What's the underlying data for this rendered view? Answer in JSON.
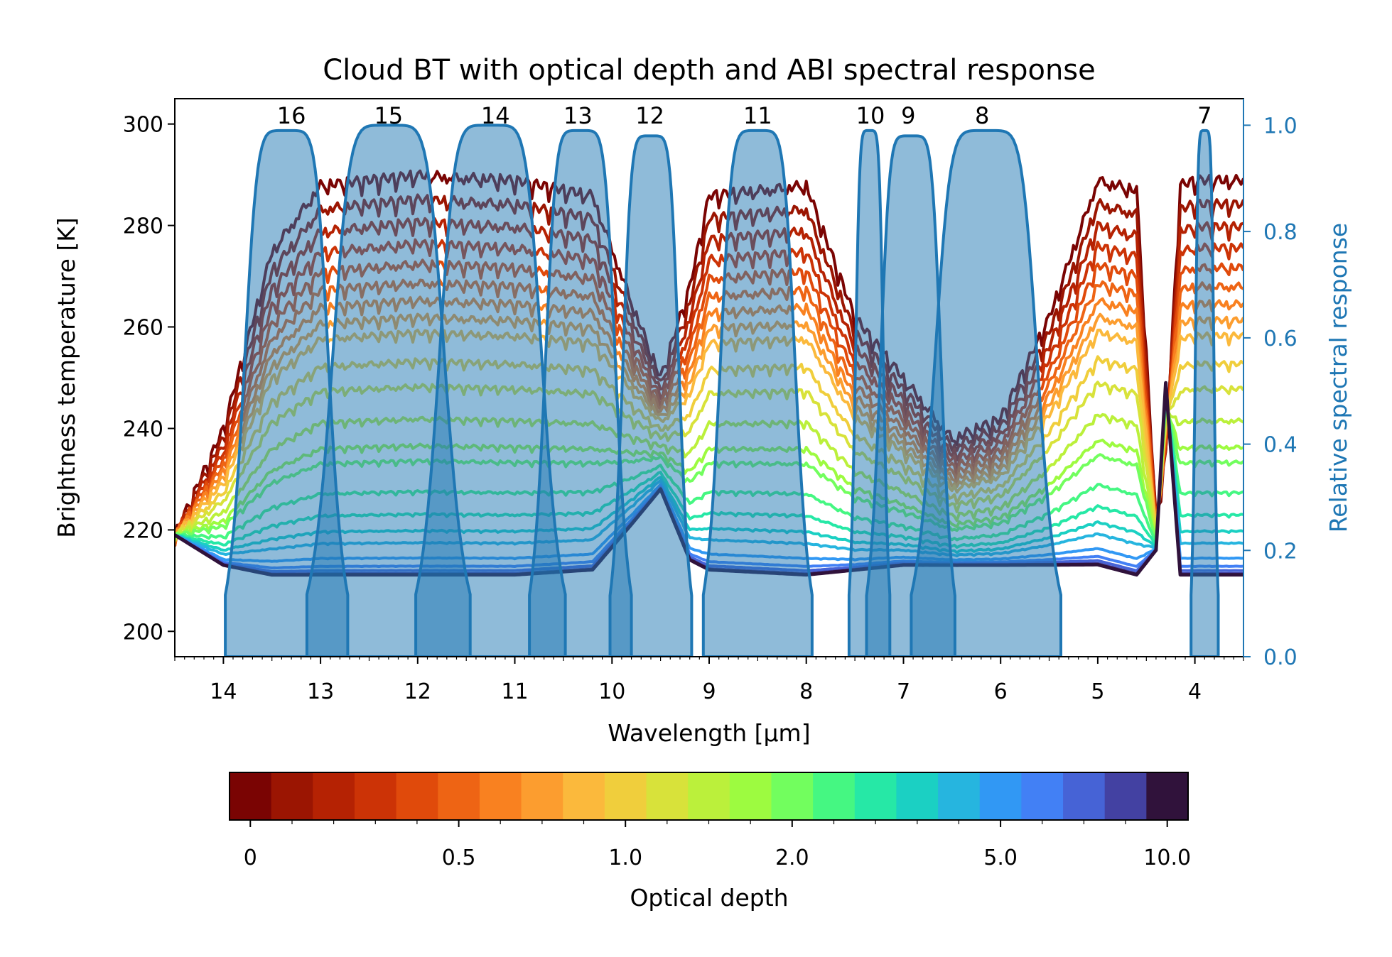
{
  "chart_data": {
    "type": "line",
    "title": "Cloud BT with optical depth and ABI spectral response",
    "xlabel": "Wavelength [µm]",
    "ylabel": "Brightness temperature [K]",
    "y2label": "Relative spectral response",
    "xlim": [
      14.5,
      3.5
    ],
    "x_axis_reversed": true,
    "ylim": [
      195,
      305
    ],
    "y2lim": [
      0.0,
      1.05
    ],
    "x_ticks": [
      "14",
      "13",
      "12",
      "11",
      "10",
      "9",
      "8",
      "7",
      "6",
      "5",
      "4"
    ],
    "y_ticks": [
      "200",
      "220",
      "240",
      "260",
      "280",
      "300"
    ],
    "y2_ticks": [
      "0.0",
      "0.2",
      "0.4",
      "0.6",
      "0.8",
      "1.0"
    ],
    "grid": false,
    "band_labels": [
      {
        "label": "16",
        "center": 13.3
      },
      {
        "label": "15",
        "center": 12.3
      },
      {
        "label": "14",
        "center": 11.2
      },
      {
        "label": "13",
        "center": 10.35
      },
      {
        "label": "12",
        "center": 9.61
      },
      {
        "label": "11",
        "center": 8.5
      },
      {
        "label": "10",
        "center": 7.34
      },
      {
        "label": "9",
        "center": 6.95
      },
      {
        "label": "8",
        "center": 6.19
      },
      {
        "label": "7",
        "center": 3.9
      }
    ],
    "spectral_response_color": "#1f77b4",
    "spectral_response_bands": [
      {
        "band": "16",
        "range": [
          13.8,
          12.9
        ],
        "peak": 0.99
      },
      {
        "band": "15",
        "range": [
          12.9,
          11.7
        ],
        "peak": 1.0
      },
      {
        "band": "14",
        "range": [
          11.8,
          10.7
        ],
        "peak": 1.0
      },
      {
        "band": "13",
        "range": [
          10.7,
          9.95
        ],
        "peak": 0.99
      },
      {
        "band": "12",
        "range": [
          9.9,
          9.3
        ],
        "peak": 0.98
      },
      {
        "band": "11",
        "range": [
          8.9,
          8.1
        ],
        "peak": 0.99
      },
      {
        "band": "10",
        "range": [
          7.5,
          7.2
        ],
        "peak": 0.99
      },
      {
        "band": "9",
        "range": [
          7.25,
          6.6
        ],
        "peak": 0.98
      },
      {
        "band": "8",
        "range": [
          6.7,
          5.6
        ],
        "peak": 0.99
      },
      {
        "band": "7",
        "range": [
          4.0,
          3.8
        ],
        "peak": 0.99
      }
    ],
    "optical_depth_levels": [
      0.0,
      0.1,
      0.2,
      0.3,
      0.4,
      0.5,
      0.6,
      0.7,
      0.8,
      1.0,
      1.2,
      1.5,
      1.8,
      2.0,
      2.5,
      3.0,
      3.5,
      4.0,
      5.0,
      6.0,
      7.0,
      8.5,
      10.0
    ],
    "bt_curve_samples": {
      "x": [
        14.5,
        14.0,
        13.5,
        13.0,
        12.0,
        11.0,
        10.2,
        9.8,
        9.5,
        9.2,
        9.0,
        8.0,
        7.5,
        7.0,
        6.5,
        6.0,
        5.5,
        5.0,
        4.6,
        4.4,
        4.3,
        4.15,
        4.0,
        3.5
      ],
      "tau_0": [
        219,
        240,
        275,
        288,
        290,
        289,
        286,
        265,
        250,
        268,
        286,
        288,
        262,
        250,
        238,
        242,
        262,
        289,
        287,
        222,
        235,
        288,
        289,
        289
      ],
      "tau_10": [
        219,
        213,
        211,
        211,
        211,
        211,
        212,
        221,
        228,
        214,
        212,
        211,
        212,
        213,
        213,
        213,
        213,
        213,
        211,
        216,
        249,
        211,
        211,
        211
      ]
    },
    "colorbar": {
      "label": "Optical depth",
      "tick_labels": [
        "0",
        "0.5",
        "1.0",
        "2.0",
        "5.0",
        "10.0"
      ],
      "tick_values": [
        0,
        0.5,
        1.0,
        2.0,
        5.0,
        10.0
      ],
      "colors": [
        "#7a0403",
        "#9b1502",
        "#b52203",
        "#cc3306",
        "#e04a0b",
        "#ee6414",
        "#f98120",
        "#fc9d2f",
        "#fbb93c",
        "#f0ce3c",
        "#d8e23a",
        "#bbf03b",
        "#9dfb40",
        "#72fe5e",
        "#45f782",
        "#26e8a6",
        "#1bd0c3",
        "#26b5df",
        "#3198f4",
        "#4280f5",
        "#4663d6",
        "#4341a2",
        "#30123b"
      ]
    }
  }
}
